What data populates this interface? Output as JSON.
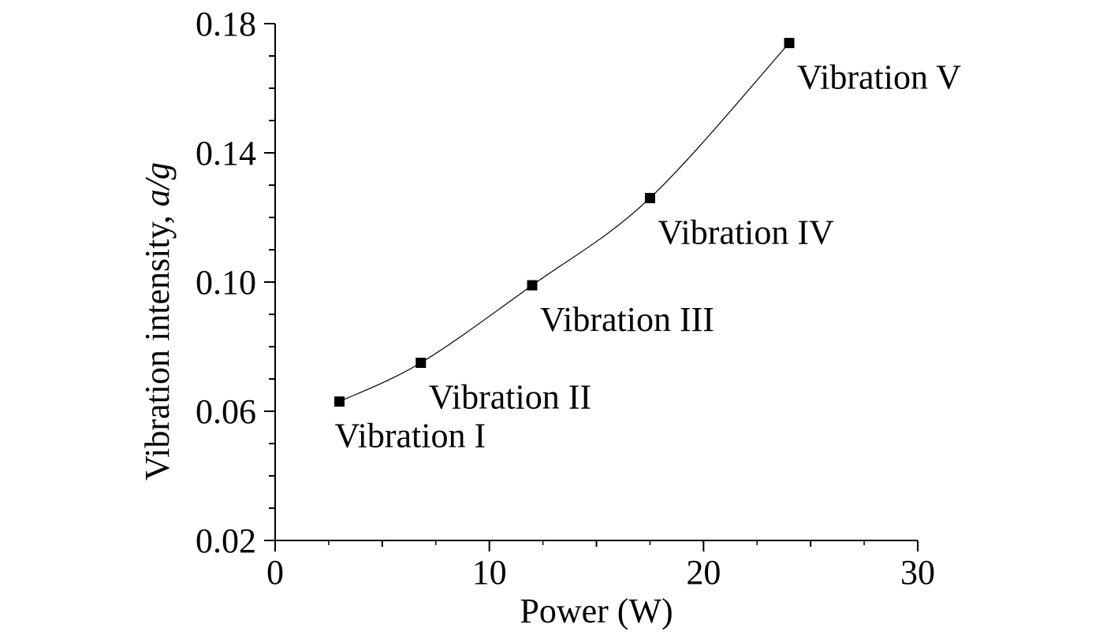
{
  "chart_data": {
    "type": "line",
    "xlabel": "Power (W)",
    "ylabel": "Vibration intensity, a/g",
    "ylabel_parts": {
      "text": "Vibration intensity, ",
      "italic": "a/g"
    },
    "xlim": [
      0,
      30
    ],
    "ylim": [
      0.02,
      0.18
    ],
    "xticks": [
      0,
      10,
      20,
      30
    ],
    "xtick_labels": [
      "0",
      "10",
      "20",
      "30"
    ],
    "yticks": [
      0.02,
      0.06,
      0.1,
      0.14,
      0.18
    ],
    "ytick_labels": [
      "0.02",
      "0.06",
      "0.10",
      "0.14",
      "0.18"
    ],
    "grid": false,
    "series": [
      {
        "marker": "square",
        "line": "smooth",
        "color": "#000000",
        "points": [
          {
            "x": 3.0,
            "y": 0.063,
            "label": "Vibration I"
          },
          {
            "x": 6.8,
            "y": 0.075,
            "label": "Vibration II"
          },
          {
            "x": 12.0,
            "y": 0.099,
            "label": "Vibration III"
          },
          {
            "x": 17.5,
            "y": 0.126,
            "label": "Vibration IV"
          },
          {
            "x": 24.0,
            "y": 0.174,
            "label": "Vibration V"
          }
        ]
      }
    ]
  }
}
